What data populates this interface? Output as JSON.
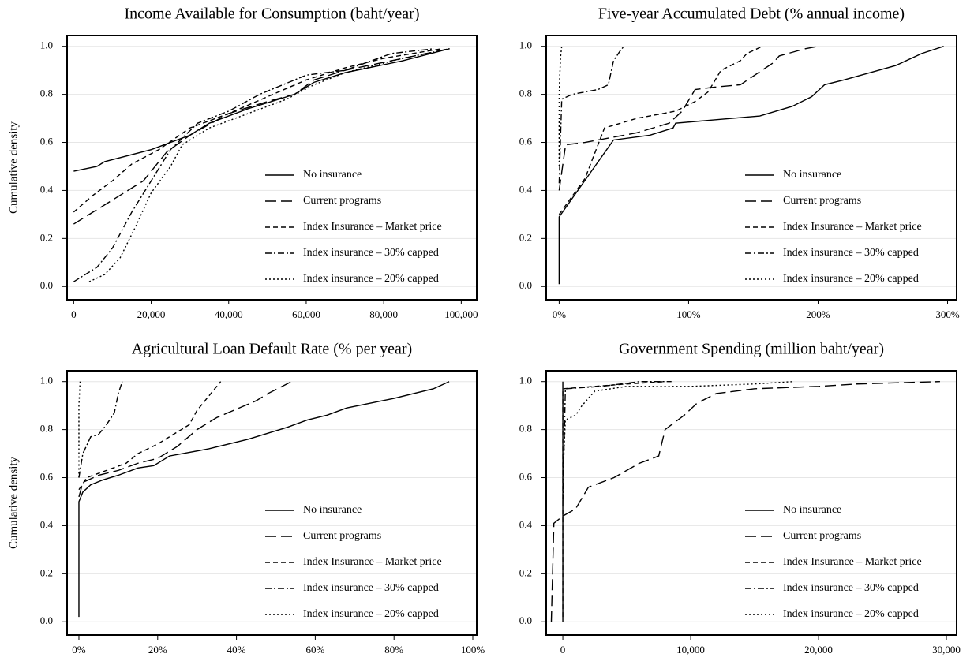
{
  "chart_data": [
    {
      "type": "line",
      "title": "Income Available for Consumption (baht/year)",
      "ylabel": "Cumulative density",
      "xlim": [
        -1700,
        104000
      ],
      "ylim": [
        -0.055,
        1.045
      ],
      "xticks": [
        0,
        {
          "value": 20000,
          "label": "20,000"
        },
        {
          "value": 40000,
          "label": "40,000"
        },
        {
          "value": 60000,
          "label": "60,000"
        },
        {
          "value": 80000,
          "label": "80,000"
        },
        {
          "value": 100000,
          "label": "100,000"
        }
      ],
      "yticks": [
        {
          "value": 0,
          "label": "0.0"
        },
        0.2,
        0.4,
        0.6,
        0.8,
        {
          "value": 1,
          "label": "1.0"
        }
      ],
      "grid": true,
      "legend": "lower right",
      "series": [
        {
          "name": "No insurance",
          "color": "#000000",
          "dash": "solid",
          "x": [
            0,
            6000,
            8000,
            20000,
            30000,
            35000,
            45000,
            57000,
            62000,
            70000,
            85000,
            97000
          ],
          "values": [
            0.48,
            0.5,
            0.52,
            0.57,
            0.63,
            0.68,
            0.74,
            0.8,
            0.85,
            0.89,
            0.94,
            0.99
          ]
        },
        {
          "name": "Current programs",
          "color": "#000000",
          "dash": "long-dash",
          "x": [
            0,
            10000,
            18000,
            24000,
            30000,
            40000,
            50000,
            57000,
            62000,
            70000,
            85000,
            97000
          ],
          "values": [
            0.26,
            0.36,
            0.44,
            0.56,
            0.63,
            0.72,
            0.77,
            0.8,
            0.86,
            0.9,
            0.95,
            0.99
          ]
        },
        {
          "name": "Index Insurance – Market price",
          "color": "#000000",
          "dash": "dash",
          "x": [
            0,
            5000,
            10000,
            15000,
            22000,
            30000,
            40000,
            50000,
            60000,
            70000,
            80000,
            95000
          ],
          "values": [
            0.31,
            0.38,
            0.44,
            0.51,
            0.57,
            0.66,
            0.72,
            0.79,
            0.86,
            0.91,
            0.95,
            0.99
          ]
        },
        {
          "name": "Index insurance – 30% capped",
          "color": "#000000",
          "dash": "dash-dot",
          "x": [
            0,
            6000,
            10000,
            15000,
            20000,
            25000,
            32000,
            40000,
            48000,
            60000,
            70000,
            82000,
            93000
          ],
          "values": [
            0.02,
            0.08,
            0.16,
            0.31,
            0.44,
            0.57,
            0.68,
            0.73,
            0.8,
            0.88,
            0.9,
            0.97,
            0.99
          ]
        },
        {
          "name": "Index insurance – 20% capped",
          "color": "#000000",
          "dash": "dot",
          "x": [
            4000,
            8000,
            12000,
            16000,
            20000,
            25000,
            28000,
            35000,
            45000,
            55000,
            62000,
            70000,
            85000,
            97000
          ],
          "values": [
            0.02,
            0.05,
            0.12,
            0.25,
            0.39,
            0.5,
            0.59,
            0.66,
            0.72,
            0.78,
            0.84,
            0.89,
            0.95,
            0.99
          ]
        }
      ]
    },
    {
      "type": "line",
      "title": "Five-year Accumulated Debt (% annual income)",
      "xlim": [
        -10,
        307
      ],
      "ylim": [
        -0.055,
        1.045
      ],
      "xticks": [
        {
          "value": 0,
          "label": "0%"
        },
        {
          "value": 100,
          "label": "100%"
        },
        {
          "value": 200,
          "label": "200%"
        },
        {
          "value": 300,
          "label": "300%"
        }
      ],
      "yticks": [
        {
          "value": 0,
          "label": "0.0"
        },
        0.2,
        0.4,
        0.6,
        0.8,
        {
          "value": 1,
          "label": "1.0"
        }
      ],
      "grid": true,
      "legend": "lower right",
      "series": [
        {
          "name": "No insurance",
          "color": "#000000",
          "dash": "solid",
          "x": [
            0,
            0,
            42,
            70,
            88,
            90,
            155,
            180,
            195,
            205,
            220,
            240,
            260,
            280,
            297
          ],
          "values": [
            0.01,
            0.29,
            0.61,
            0.63,
            0.66,
            0.68,
            0.71,
            0.75,
            0.79,
            0.84,
            0.86,
            0.89,
            0.92,
            0.97,
            1.0
          ]
        },
        {
          "name": "Current programs",
          "color": "#000000",
          "dash": "long-dash",
          "x": [
            0,
            5,
            20,
            60,
            85,
            95,
            105,
            120,
            140,
            165,
            170,
            190,
            200
          ],
          "values": [
            0.4,
            0.59,
            0.6,
            0.64,
            0.68,
            0.73,
            0.82,
            0.83,
            0.84,
            0.93,
            0.96,
            0.99,
            1.0
          ]
        },
        {
          "name": "Index Insurance – Market price",
          "color": "#000000",
          "dash": "dash",
          "x": [
            0,
            20,
            35,
            60,
            90,
            105,
            115,
            125,
            140,
            145,
            157
          ],
          "values": [
            0.3,
            0.45,
            0.66,
            0.7,
            0.73,
            0.77,
            0.81,
            0.9,
            0.94,
            0.97,
            1.0
          ]
        },
        {
          "name": "Index insurance – 30% capped",
          "color": "#000000",
          "dash": "dash-dot",
          "x": [
            0,
            2,
            10,
            30,
            38,
            42,
            47,
            50
          ],
          "values": [
            0.43,
            0.78,
            0.8,
            0.82,
            0.84,
            0.94,
            0.98,
            1.0
          ]
        },
        {
          "name": "Index insurance – 20% capped",
          "color": "#000000",
          "dash": "dot",
          "x": [
            0,
            0,
            1,
            2
          ],
          "values": [
            0.5,
            0.8,
            0.95,
            1.0
          ]
        }
      ]
    },
    {
      "type": "line",
      "title": "Agricultural Loan Default Rate (% per year)",
      "ylabel": "Cumulative density",
      "xlim": [
        -3,
        101
      ],
      "ylim": [
        -0.055,
        1.045
      ],
      "xticks": [
        {
          "value": 0,
          "label": "0%"
        },
        {
          "value": 20,
          "label": "20%"
        },
        {
          "value": 40,
          "label": "40%"
        },
        {
          "value": 60,
          "label": "60%"
        },
        {
          "value": 80,
          "label": "80%"
        },
        {
          "value": 100,
          "label": "100%"
        }
      ],
      "yticks": [
        {
          "value": 0,
          "label": "0.0"
        },
        0.2,
        0.4,
        0.6,
        0.8,
        {
          "value": 1,
          "label": "1.0"
        }
      ],
      "grid": true,
      "legend": "lower right",
      "series": [
        {
          "name": "No insurance",
          "color": "#000000",
          "dash": "solid",
          "x": [
            0,
            0,
            1,
            3,
            6,
            10,
            15,
            19,
            23,
            33,
            43,
            53,
            58,
            63,
            68,
            80,
            90,
            94
          ],
          "values": [
            0.02,
            0.5,
            0.54,
            0.57,
            0.59,
            0.61,
            0.64,
            0.65,
            0.69,
            0.72,
            0.76,
            0.81,
            0.84,
            0.86,
            0.89,
            0.93,
            0.97,
            1.0
          ]
        },
        {
          "name": "Current programs",
          "color": "#000000",
          "dash": "long-dash",
          "x": [
            0,
            1,
            5,
            10,
            15,
            20,
            25,
            30,
            35,
            45,
            48,
            54
          ],
          "values": [
            0.52,
            0.58,
            0.61,
            0.63,
            0.66,
            0.68,
            0.73,
            0.8,
            0.85,
            0.92,
            0.95,
            1.0
          ]
        },
        {
          "name": "Index Insurance – Market price",
          "color": "#000000",
          "dash": "dash",
          "x": [
            0,
            2,
            7,
            12,
            15,
            20,
            25,
            28,
            30,
            33,
            36
          ],
          "values": [
            0.55,
            0.6,
            0.63,
            0.66,
            0.7,
            0.74,
            0.79,
            0.82,
            0.88,
            0.94,
            1.0
          ]
        },
        {
          "name": "Index insurance – 30% capped",
          "color": "#000000",
          "dash": "dash-dot",
          "x": [
            0,
            1,
            3,
            5,
            7,
            9,
            10,
            11
          ],
          "values": [
            0.6,
            0.7,
            0.77,
            0.78,
            0.82,
            0.87,
            0.95,
            1.0
          ]
        },
        {
          "name": "Index insurance – 20% capped",
          "color": "#000000",
          "dash": "dot",
          "x": [
            0,
            0,
            0.3
          ],
          "values": [
            0.6,
            0.9,
            1.0
          ]
        }
      ]
    },
    {
      "type": "line",
      "title": "Government Spending (million baht/year)",
      "xlim": [
        -1300,
        30800
      ],
      "ylim": [
        -0.055,
        1.045
      ],
      "xticks": [
        0,
        {
          "value": 10000,
          "label": "10,000"
        },
        {
          "value": 20000,
          "label": "20,000"
        },
        {
          "value": 30000,
          "label": "30,000"
        }
      ],
      "yticks": [
        {
          "value": 0,
          "label": "0.0"
        },
        0.2,
        0.4,
        0.6,
        0.8,
        {
          "value": 1,
          "label": "1.0"
        }
      ],
      "grid": true,
      "legend": "lower right",
      "series": [
        {
          "name": "No insurance",
          "color": "#000000",
          "dash": "solid",
          "x": [
            0,
            0
          ],
          "values": [
            0.0,
            1.0
          ]
        },
        {
          "name": "Current programs",
          "color": "#000000",
          "dash": "long-dash",
          "x": [
            -900,
            -700,
            0,
            1000,
            2000,
            4000,
            6000,
            7500,
            8000,
            9500,
            10500,
            12000,
            15000,
            20000,
            23000,
            29500
          ],
          "values": [
            0.0,
            0.41,
            0.44,
            0.47,
            0.56,
            0.6,
            0.66,
            0.69,
            0.8,
            0.86,
            0.91,
            0.95,
            0.97,
            0.98,
            0.99,
            1.0
          ]
        },
        {
          "name": "Index Insurance – Market price",
          "color": "#000000",
          "dash": "dash",
          "x": [
            0,
            0,
            5000,
            8000
          ],
          "values": [
            0.02,
            0.97,
            0.99,
            1.0
          ]
        },
        {
          "name": "Index insurance – 30% capped",
          "color": "#000000",
          "dash": "dash-dot",
          "x": [
            0,
            200,
            3000,
            6000,
            8500
          ],
          "values": [
            0.5,
            0.97,
            0.98,
            1.0,
            1.0
          ]
        },
        {
          "name": "Index insurance – 20% capped",
          "color": "#000000",
          "dash": "dot",
          "x": [
            0,
            200,
            1000,
            1500,
            2500,
            5000,
            10000,
            15000,
            18000
          ],
          "values": [
            0.6,
            0.84,
            0.86,
            0.9,
            0.96,
            0.98,
            0.98,
            0.99,
            1.0
          ]
        }
      ]
    }
  ]
}
